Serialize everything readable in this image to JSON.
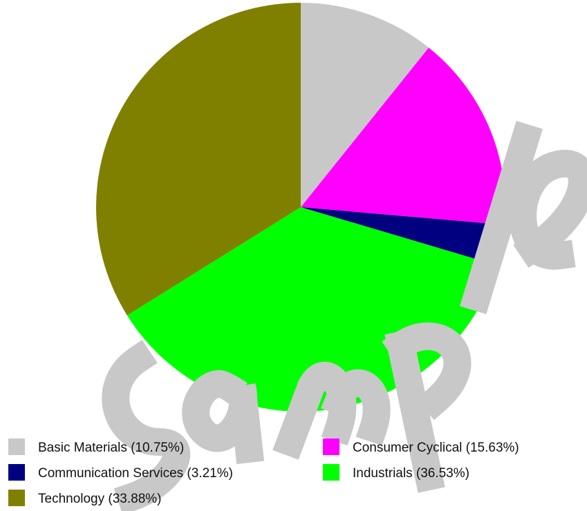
{
  "chart_data": {
    "type": "pie",
    "slices": [
      {
        "label": "Basic Materials (10.75%)",
        "value": 10.75,
        "color": "#c8c8c8"
      },
      {
        "label": "Consumer Cyclical (15.63%)",
        "value": 15.63,
        "color": "#ff00ff"
      },
      {
        "label": "Communication Services (3.21%)",
        "value": 3.21,
        "color": "#000080"
      },
      {
        "label": "Industrials (36.53%)",
        "value": 36.53,
        "color": "#00ff00"
      },
      {
        "label": "Technology (33.88%)",
        "value": 33.88,
        "color": "#808000"
      }
    ],
    "start_angle": "12 o'clock",
    "direction": "clockwise",
    "legend_placement": "bottom"
  },
  "watermark": {
    "text": "Sample",
    "color": "#c8c8c8"
  }
}
